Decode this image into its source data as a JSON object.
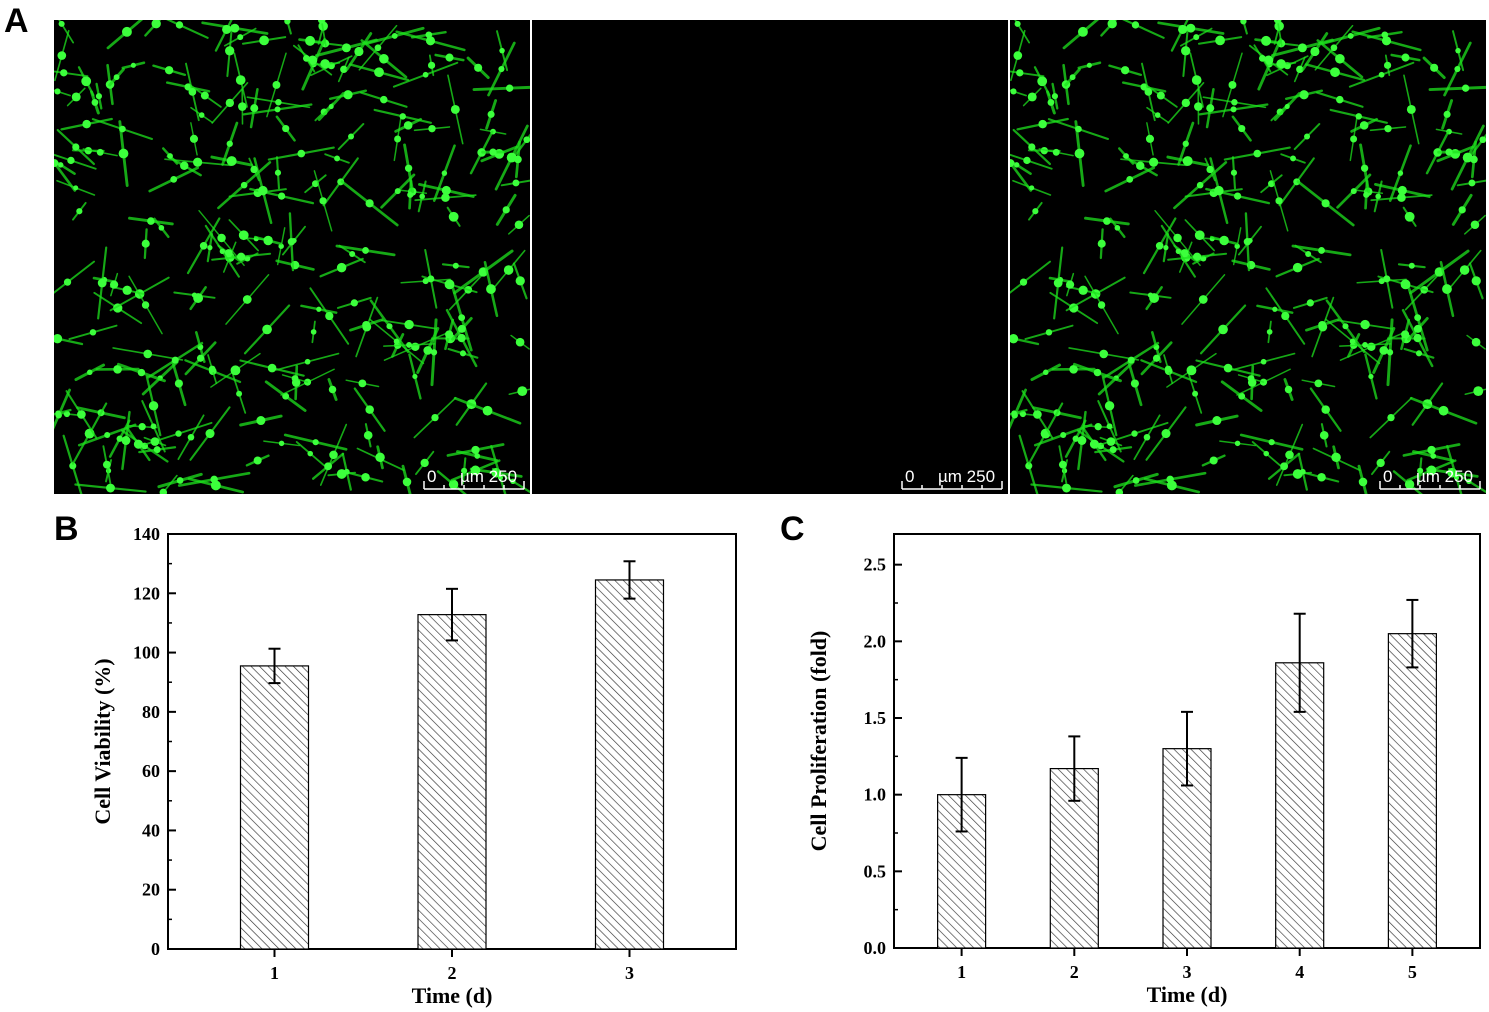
{
  "panels": {
    "a_label": "A",
    "b_label": "B",
    "c_label": "C"
  },
  "micrographs": [
    {
      "scale_zero": "0",
      "scale_unit": "µm 250",
      "stain_color": "#1de21d",
      "content": "dense"
    },
    {
      "scale_zero": "0",
      "scale_unit": "µm 250",
      "stain_color": "#1de21d",
      "content": "empty"
    },
    {
      "scale_zero": "0",
      "scale_unit": "µm 250",
      "stain_color": "#1de21d",
      "content": "dense"
    }
  ],
  "chart_data": [
    {
      "type": "bar",
      "panel": "B",
      "categories": [
        "1",
        "2",
        "3"
      ],
      "values": [
        95.5,
        112.8,
        124.5
      ],
      "errors": [
        5.8,
        8.7,
        6.3
      ],
      "xlabel": "Time (d)",
      "ylabel": "Cell Viability (%)",
      "ylim": [
        0,
        140
      ],
      "yticks": [
        "0",
        "20",
        "40",
        "60",
        "80",
        "100",
        "120",
        "140"
      ],
      "fill": "hatched",
      "grid": false
    },
    {
      "type": "bar",
      "panel": "C",
      "categories": [
        "1",
        "2",
        "3",
        "4",
        "5"
      ],
      "values": [
        1.0,
        1.17,
        1.3,
        1.86,
        2.05
      ],
      "errors": [
        0.24,
        0.21,
        0.24,
        0.32,
        0.22
      ],
      "xlabel": "Time (d)",
      "ylabel": "Cell Proliferation (fold)",
      "ylim": [
        0,
        2.7
      ],
      "yticks": [
        "0.0",
        "0.5",
        "1.0",
        "1.5",
        "2.0",
        "2.5"
      ],
      "fill": "hatched",
      "grid": false
    }
  ]
}
